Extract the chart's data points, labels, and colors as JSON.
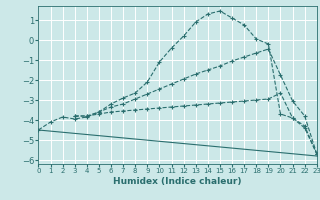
{
  "xlabel": "Humidex (Indice chaleur)",
  "bg_color": "#cce8e8",
  "grid_color": "#ffffff",
  "line_color": "#2a6e6e",
  "xlim": [
    0,
    23
  ],
  "ylim": [
    -6.2,
    1.7
  ],
  "xticks": [
    0,
    1,
    2,
    3,
    4,
    5,
    6,
    7,
    8,
    9,
    10,
    11,
    12,
    13,
    14,
    15,
    16,
    17,
    18,
    19,
    20,
    21,
    22,
    23
  ],
  "yticks": [
    -6,
    -5,
    -4,
    -3,
    -2,
    -1,
    0,
    1
  ],
  "curve1_x": [
    0,
    1,
    2,
    3,
    4,
    5,
    6,
    7,
    8,
    9,
    10,
    11,
    12,
    13,
    14,
    15,
    16,
    17,
    18,
    19,
    20,
    21,
    22,
    23
  ],
  "curve1_y": [
    -4.5,
    -4.1,
    -3.85,
    -3.95,
    -3.85,
    -3.6,
    -3.2,
    -2.9,
    -2.65,
    -2.1,
    -1.1,
    -0.4,
    0.2,
    0.9,
    1.3,
    1.45,
    1.1,
    0.75,
    0.05,
    -0.2,
    -3.7,
    -3.9,
    -4.3,
    -5.7
  ],
  "curve2_x": [
    3,
    4,
    5,
    6,
    7,
    8,
    9,
    10,
    11,
    12,
    13,
    14,
    15,
    16,
    17,
    18,
    19,
    20,
    21,
    22,
    23
  ],
  "curve2_y": [
    -3.8,
    -3.8,
    -3.6,
    -3.35,
    -3.2,
    -2.95,
    -2.7,
    -2.45,
    -2.2,
    -1.95,
    -1.7,
    -1.5,
    -1.3,
    -1.05,
    -0.85,
    -0.65,
    -0.45,
    -1.75,
    -3.05,
    -3.8,
    -5.7
  ],
  "curve3_x": [
    3,
    4,
    5,
    6,
    7,
    8,
    9,
    10,
    11,
    12,
    13,
    14,
    15,
    16,
    17,
    18,
    19,
    20,
    21,
    22,
    23
  ],
  "curve3_y": [
    -3.8,
    -3.8,
    -3.7,
    -3.6,
    -3.55,
    -3.5,
    -3.45,
    -3.4,
    -3.35,
    -3.3,
    -3.25,
    -3.2,
    -3.15,
    -3.1,
    -3.05,
    -3.0,
    -2.95,
    -2.65,
    -3.9,
    -4.4,
    -5.7
  ],
  "line4_x": [
    0,
    23
  ],
  "line4_y": [
    -4.5,
    -5.8
  ]
}
